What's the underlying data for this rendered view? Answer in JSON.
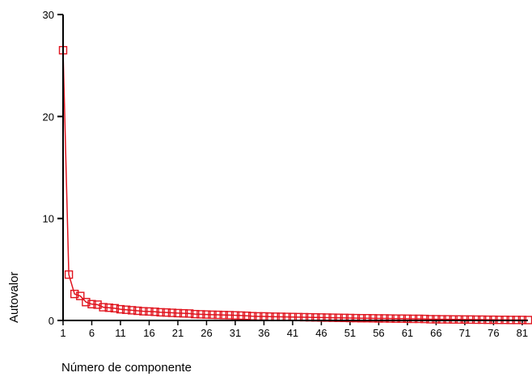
{
  "chart_data": {
    "type": "line",
    "title": "",
    "xlabel": "Número de componente",
    "ylabel": "Autovalor",
    "xlim": [
      1,
      82
    ],
    "ylim": [
      0,
      30
    ],
    "y_ticks": [
      0,
      10,
      20,
      30
    ],
    "x_ticks": [
      1,
      6,
      11,
      16,
      21,
      26,
      31,
      36,
      41,
      46,
      51,
      56,
      61,
      66,
      71,
      76,
      81
    ],
    "grid": false,
    "legend": "none",
    "marker": "square",
    "color": "#e0141e",
    "series": [
      {
        "x": [
          1,
          2,
          3,
          4,
          5,
          6,
          7,
          8,
          9,
          10,
          11,
          12,
          13,
          14,
          15,
          16,
          17,
          18,
          19,
          20,
          21,
          22,
          23,
          24,
          25,
          26,
          27,
          28,
          29,
          30,
          31,
          32,
          33,
          34,
          35,
          36,
          37,
          38,
          39,
          40,
          41,
          42,
          43,
          44,
          45,
          46,
          47,
          48,
          49,
          50,
          51,
          52,
          53,
          54,
          55,
          56,
          57,
          58,
          59,
          60,
          61,
          62,
          63,
          64,
          65,
          66,
          67,
          68,
          69,
          70,
          71,
          72,
          73,
          74,
          75,
          76,
          77,
          78,
          79,
          80,
          81,
          82
        ],
        "values": [
          26.5,
          4.5,
          2.6,
          2.4,
          1.8,
          1.6,
          1.55,
          1.3,
          1.25,
          1.2,
          1.1,
          1.05,
          1.0,
          0.95,
          0.9,
          0.88,
          0.85,
          0.8,
          0.78,
          0.75,
          0.72,
          0.7,
          0.68,
          0.62,
          0.6,
          0.58,
          0.56,
          0.55,
          0.53,
          0.52,
          0.5,
          0.48,
          0.46,
          0.42,
          0.4,
          0.4,
          0.38,
          0.37,
          0.36,
          0.35,
          0.34,
          0.33,
          0.32,
          0.31,
          0.3,
          0.29,
          0.28,
          0.27,
          0.26,
          0.25,
          0.24,
          0.23,
          0.22,
          0.22,
          0.21,
          0.2,
          0.2,
          0.19,
          0.18,
          0.18,
          0.17,
          0.16,
          0.16,
          0.15,
          0.12,
          0.12,
          0.11,
          0.11,
          0.1,
          0.1,
          0.09,
          0.09,
          0.08,
          0.08,
          0.07,
          0.07,
          0.06,
          0.06,
          0.05,
          0.05,
          0.05,
          0.04
        ]
      }
    ]
  }
}
